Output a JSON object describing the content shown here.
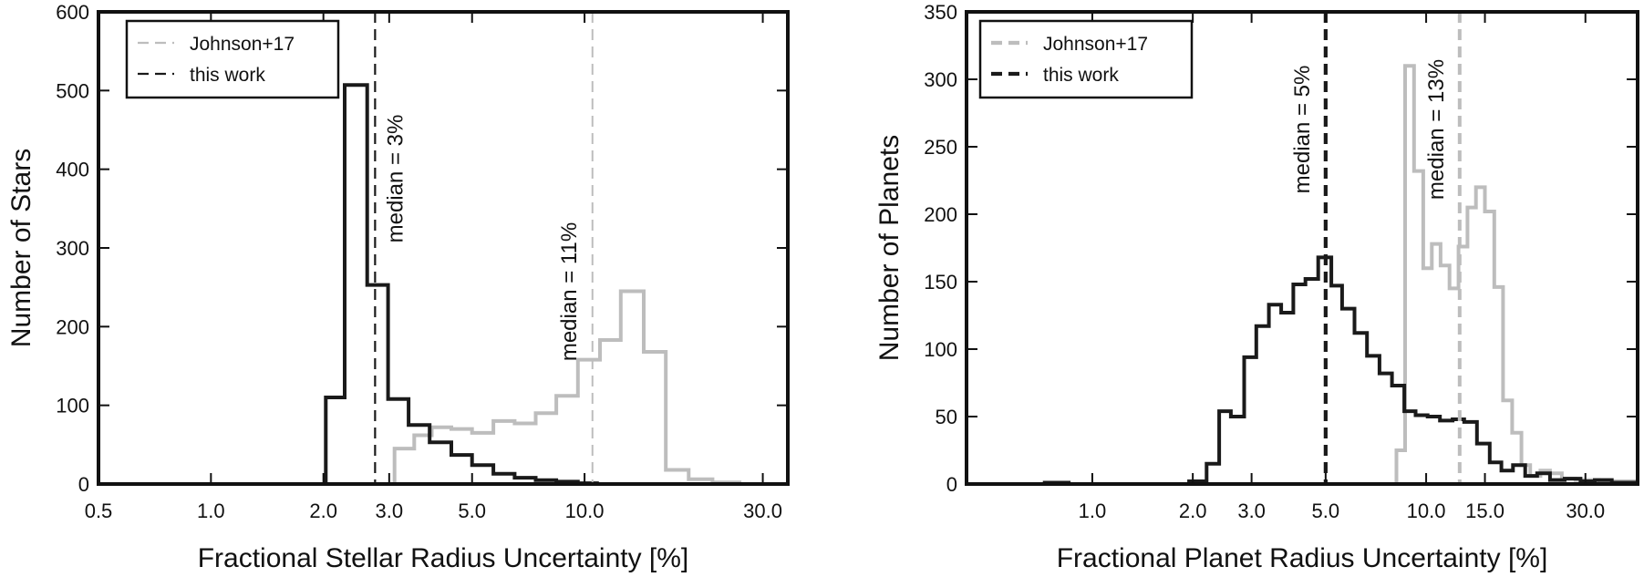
{
  "chart_data": [
    {
      "type": "line",
      "xscale": "log",
      "xlabel": "Fractional Stellar Radius Uncertainty [%]",
      "ylabel": "Number of Stars",
      "xlim": [
        0.5,
        35
      ],
      "ylim": [
        0,
        600
      ],
      "xticks": [
        0.5,
        1.0,
        2.0,
        3.0,
        5.0,
        10.0,
        30.0
      ],
      "xtick_labels": [
        "0.5",
        "1.0",
        "2.0",
        "3.0",
        "5.0",
        "10.0",
        "30.0"
      ],
      "yticks": [
        0,
        100,
        200,
        300,
        400,
        500,
        600
      ],
      "ytick_labels": [
        "0",
        "100",
        "200",
        "300",
        "400",
        "500",
        "600"
      ],
      "legend_position": "top-left",
      "series": [
        {
          "name": "Johnson+17",
          "color": "#bdbdbd",
          "style": "step",
          "points": [
            [
              3.1,
              0
            ],
            [
              3.1,
              45
            ],
            [
              3.5,
              45
            ],
            [
              3.5,
              62
            ],
            [
              3.9,
              62
            ],
            [
              3.9,
              72
            ],
            [
              4.4,
              72
            ],
            [
              4.4,
              70
            ],
            [
              5.0,
              70
            ],
            [
              5.0,
              65
            ],
            [
              5.7,
              65
            ],
            [
              5.7,
              80
            ],
            [
              6.5,
              80
            ],
            [
              6.5,
              77
            ],
            [
              7.4,
              77
            ],
            [
              7.4,
              90
            ],
            [
              8.4,
              90
            ],
            [
              8.4,
              112
            ],
            [
              9.6,
              112
            ],
            [
              9.6,
              158
            ],
            [
              11.0,
              158
            ],
            [
              11.0,
              183
            ],
            [
              12.5,
              183
            ],
            [
              12.5,
              245
            ],
            [
              14.4,
              245
            ],
            [
              14.4,
              168
            ],
            [
              16.5,
              168
            ],
            [
              16.5,
              18
            ],
            [
              19.0,
              18
            ],
            [
              19.0,
              6
            ],
            [
              22.0,
              6
            ],
            [
              22.0,
              2
            ],
            [
              26.0,
              2
            ],
            [
              26.0,
              0
            ]
          ]
        },
        {
          "name": "this work",
          "color": "#1a1a1a",
          "style": "step",
          "points": [
            [
              2.03,
              0
            ],
            [
              2.03,
              110
            ],
            [
              2.28,
              110
            ],
            [
              2.28,
              507
            ],
            [
              2.62,
              507
            ],
            [
              2.62,
              253
            ],
            [
              2.98,
              253
            ],
            [
              2.98,
              108
            ],
            [
              3.38,
              108
            ],
            [
              3.38,
              75
            ],
            [
              3.85,
              75
            ],
            [
              3.85,
              53
            ],
            [
              4.4,
              53
            ],
            [
              4.4,
              37
            ],
            [
              5.0,
              37
            ],
            [
              5.0,
              24
            ],
            [
              5.7,
              24
            ],
            [
              5.7,
              13
            ],
            [
              6.5,
              13
            ],
            [
              6.5,
              8
            ],
            [
              7.4,
              8
            ],
            [
              7.4,
              5
            ],
            [
              8.4,
              5
            ],
            [
              8.4,
              3
            ],
            [
              9.6,
              3
            ],
            [
              9.6,
              1
            ],
            [
              10.8,
              1
            ],
            [
              10.8,
              0
            ]
          ]
        }
      ],
      "annotations": [
        {
          "text": "median = 3%",
          "x": 2.75
        },
        {
          "text": "median = 11%",
          "x": 10.5
        }
      ],
      "median_lines": [
        {
          "x": 2.75,
          "color": "#1a1a1a"
        },
        {
          "x": 10.5,
          "color": "#bdbdbd"
        }
      ]
    },
    {
      "type": "line",
      "xscale": "log",
      "xlabel": "Fractional Planet Radius Uncertainty [%]",
      "ylabel": "Number of Planets",
      "xlim": [
        0.42,
        43
      ],
      "ylim": [
        0,
        350
      ],
      "xticks": [
        1.0,
        2.0,
        3.0,
        5.0,
        10.0,
        15.0,
        30.0
      ],
      "xtick_labels": [
        "1.0",
        "2.0",
        "3.0",
        "5.0",
        "10.0",
        "15.0",
        "30.0"
      ],
      "yticks": [
        0,
        50,
        100,
        150,
        200,
        250,
        300,
        350
      ],
      "ytick_labels": [
        "0",
        "50",
        "100",
        "150",
        "200",
        "250",
        "300",
        "350"
      ],
      "legend_position": "top-left",
      "series": [
        {
          "name": "Johnson+17",
          "color": "#bdbdbd",
          "style": "step",
          "points": [
            [
              8.15,
              0
            ],
            [
              8.15,
              25
            ],
            [
              8.65,
              25
            ],
            [
              8.65,
              310
            ],
            [
              9.2,
              310
            ],
            [
              9.2,
              232
            ],
            [
              9.8,
              232
            ],
            [
              9.8,
              160
            ],
            [
              10.4,
              160
            ],
            [
              10.4,
              178
            ],
            [
              11.05,
              178
            ],
            [
              11.05,
              162
            ],
            [
              11.75,
              162
            ],
            [
              11.75,
              145
            ],
            [
              12.5,
              145
            ],
            [
              12.5,
              176
            ],
            [
              13.3,
              176
            ],
            [
              13.3,
              205
            ],
            [
              14.1,
              205
            ],
            [
              14.1,
              220
            ],
            [
              15.0,
              220
            ],
            [
              15.0,
              202
            ],
            [
              16.0,
              202
            ],
            [
              16.0,
              146
            ],
            [
              17.0,
              146
            ],
            [
              17.0,
              62
            ],
            [
              18.1,
              62
            ],
            [
              18.1,
              38
            ],
            [
              19.3,
              38
            ],
            [
              19.3,
              14
            ],
            [
              20.5,
              14
            ],
            [
              20.5,
              6
            ],
            [
              22.0,
              6
            ],
            [
              22.0,
              10
            ],
            [
              23.5,
              10
            ],
            [
              23.5,
              8
            ],
            [
              25.5,
              8
            ],
            [
              25.5,
              4
            ],
            [
              28.0,
              4
            ],
            [
              28.0,
              3
            ],
            [
              33.0,
              3
            ],
            [
              33.0,
              2
            ],
            [
              43,
              2
            ]
          ]
        },
        {
          "name": "this work",
          "color": "#1a1a1a",
          "style": "step",
          "points": [
            [
              0.42,
              0
            ],
            [
              0.72,
              0
            ],
            [
              0.72,
              1
            ],
            [
              0.85,
              1
            ],
            [
              0.85,
              0
            ],
            [
              1.95,
              0
            ],
            [
              1.95,
              2
            ],
            [
              2.2,
              2
            ],
            [
              2.2,
              15
            ],
            [
              2.4,
              15
            ],
            [
              2.4,
              54
            ],
            [
              2.6,
              54
            ],
            [
              2.6,
              50
            ],
            [
              2.85,
              50
            ],
            [
              2.85,
              94
            ],
            [
              3.1,
              94
            ],
            [
              3.1,
              117
            ],
            [
              3.38,
              117
            ],
            [
              3.38,
              133
            ],
            [
              3.68,
              133
            ],
            [
              3.68,
              127
            ],
            [
              4.0,
              127
            ],
            [
              4.0,
              148
            ],
            [
              4.35,
              148
            ],
            [
              4.35,
              152
            ],
            [
              4.75,
              152
            ],
            [
              4.75,
              168
            ],
            [
              5.2,
              168
            ],
            [
              5.2,
              147
            ],
            [
              5.6,
              147
            ],
            [
              5.6,
              130
            ],
            [
              6.1,
              130
            ],
            [
              6.1,
              112
            ],
            [
              6.65,
              112
            ],
            [
              6.65,
              95
            ],
            [
              7.25,
              95
            ],
            [
              7.25,
              82
            ],
            [
              7.9,
              82
            ],
            [
              7.9,
              73
            ],
            [
              8.6,
              73
            ],
            [
              8.6,
              54
            ],
            [
              9.3,
              54
            ],
            [
              9.3,
              51
            ],
            [
              10.1,
              51
            ],
            [
              10.1,
              50
            ],
            [
              11.0,
              50
            ],
            [
              11.0,
              47
            ],
            [
              12.0,
              47
            ],
            [
              12.0,
              48
            ],
            [
              13.0,
              48
            ],
            [
              13.0,
              46
            ],
            [
              14.2,
              46
            ],
            [
              14.2,
              30
            ],
            [
              15.5,
              30
            ],
            [
              15.5,
              16
            ],
            [
              16.8,
              16
            ],
            [
              16.8,
              10
            ],
            [
              18.2,
              10
            ],
            [
              18.2,
              14
            ],
            [
              19.8,
              14
            ],
            [
              19.8,
              6
            ],
            [
              21.5,
              6
            ],
            [
              21.5,
              8
            ],
            [
              23.5,
              8
            ],
            [
              23.5,
              3
            ],
            [
              26,
              3
            ],
            [
              26,
              4
            ],
            [
              29,
              4
            ],
            [
              29,
              2
            ],
            [
              32,
              2
            ],
            [
              32,
              3
            ],
            [
              36,
              3
            ],
            [
              36,
              1
            ],
            [
              43,
              1
            ]
          ]
        }
      ],
      "annotations": [
        {
          "text": "median = 5%",
          "x": 5.0
        },
        {
          "text": "median = 13%",
          "x": 12.6
        }
      ],
      "median_lines": [
        {
          "x": 5.0,
          "color": "#1a1a1a"
        },
        {
          "x": 12.6,
          "color": "#bdbdbd"
        }
      ]
    }
  ]
}
